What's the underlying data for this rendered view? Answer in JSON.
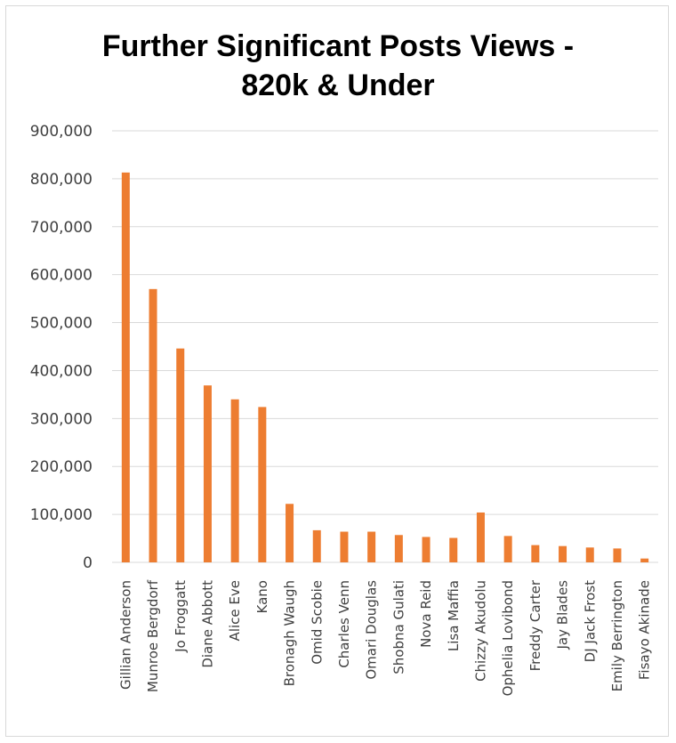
{
  "chart_data": {
    "type": "bar",
    "title_line1": "Further Significant Posts Views -",
    "title_line2": "820k & Under",
    "xlabel": "",
    "ylabel": "",
    "ylim": [
      0,
      900000
    ],
    "yticks": [
      0,
      100000,
      200000,
      300000,
      400000,
      500000,
      600000,
      700000,
      800000,
      900000
    ],
    "ytick_labels": [
      "0",
      "100,000",
      "200,000",
      "300,000",
      "400,000",
      "500,000",
      "600,000",
      "700,000",
      "800,000",
      "900,000"
    ],
    "grid": true,
    "legend": "none",
    "bar_color": "#ed7d31",
    "categories": [
      "Gillian Anderson",
      "Munroe Bergdorf",
      "Jo Froggatt",
      "Diane Abbott",
      "Alice Eve",
      "Kano",
      "Bronagh Waugh",
      "Omid Scobie",
      "Charles Venn",
      "Omari Douglas",
      "Shobna Gulati",
      "Nova Reid",
      "Lisa Maffia",
      "Chizzy Akudolu",
      "Ophelia Lovibond",
      "Freddy Carter",
      "Jay Blades",
      "DJ Jack Frost",
      "Emily Berrington",
      "Fisayo Akinade"
    ],
    "values": [
      813000,
      570000,
      446000,
      369000,
      340000,
      324000,
      122000,
      67000,
      64000,
      64000,
      57000,
      53000,
      51000,
      104000,
      55000,
      36000,
      34000,
      31000,
      29000,
      8000
    ]
  }
}
